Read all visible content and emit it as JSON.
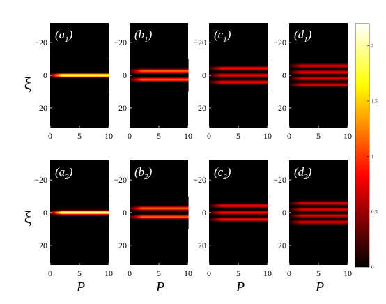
{
  "chart_data": {
    "type": "heatmap",
    "title": "",
    "xlabel": "P",
    "ylabel": "ξ",
    "xlim": [
      0,
      10
    ],
    "ylim": [
      -32,
      32
    ],
    "xticks": [
      "0",
      "5",
      "10"
    ],
    "yticks": [
      "−20",
      "0",
      "20"
    ],
    "colormap": "hot",
    "colorbar": {
      "range": [
        0,
        2.2
      ],
      "ticks": [
        "0",
        "0.5",
        "1",
        "1.5",
        "2"
      ]
    },
    "panels": [
      {
        "id": "a1",
        "letter": "a",
        "sub": "1",
        "stripes": [
          0
        ],
        "peaks": [
          2.15
        ]
      },
      {
        "id": "b1",
        "letter": "b",
        "sub": "1",
        "stripes": [
          -2.6,
          2.6
        ],
        "peaks": [
          1.2,
          1.2
        ]
      },
      {
        "id": "c1",
        "letter": "c",
        "sub": "1",
        "stripes": [
          -4.2,
          0,
          4.2
        ],
        "peaks": [
          0.9,
          0.85,
          0.9
        ]
      },
      {
        "id": "d1",
        "letter": "d",
        "sub": "1",
        "stripes": [
          -5.8,
          -1.95,
          1.95,
          5.8
        ],
        "peaks": [
          0.75,
          0.75,
          0.75,
          0.75
        ]
      },
      {
        "id": "a2",
        "letter": "a",
        "sub": "2",
        "stripes": [
          0
        ],
        "peaks": [
          2.1
        ]
      },
      {
        "id": "b2",
        "letter": "b",
        "sub": "2",
        "stripes": [
          -2.6,
          2.6
        ],
        "peaks": [
          1.2,
          1.2
        ]
      },
      {
        "id": "c2",
        "letter": "c",
        "sub": "2",
        "stripes": [
          -4.2,
          0,
          4.2
        ],
        "peaks": [
          0.9,
          0.85,
          0.9
        ]
      },
      {
        "id": "d2",
        "letter": "d",
        "sub": "2",
        "stripes": [
          -5.8,
          -1.95,
          1.95,
          5.8
        ],
        "peaks": [
          0.75,
          0.75,
          0.75,
          0.75
        ]
      }
    ]
  }
}
